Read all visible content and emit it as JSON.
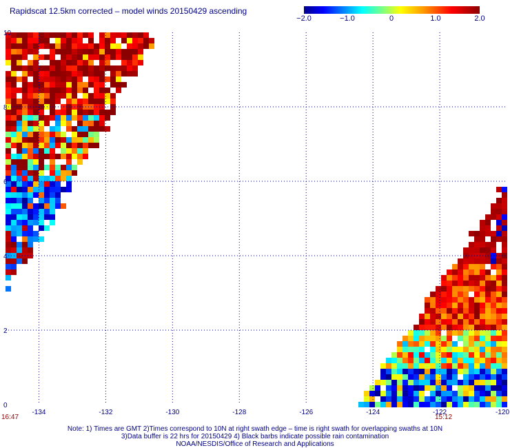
{
  "title": "Rapidscat 12.5km corrected – model winds 20150429 ascending",
  "colorbar": {
    "labels": [
      "−2.0",
      "−1.0",
      "0",
      "1.0",
      "2.0"
    ]
  },
  "times": {
    "left": "16:47",
    "right": "15:12"
  },
  "notes": [
    "Note: 1) Times are GMT 2)Times correspond to 10N at right swath edge – time is right swath for overlapping swaths at 10N",
    "3)Data buffer is 22 hrs for 20150429 4) Black barbs indicate possible rain contamination",
    "NOAA/NESDIS/Office of Research and Applications"
  ],
  "chart_data": {
    "type": "heatmap",
    "x_ticks": [
      "-134",
      "-132",
      "-130",
      "-128",
      "-126",
      "-124",
      "-122",
      "-120"
    ],
    "y_ticks": [
      "0",
      "2",
      "4",
      "6",
      "8",
      "10"
    ],
    "x_range": [
      -135,
      -120
    ],
    "y_range": [
      0,
      10
    ],
    "value_range": [
      -2.0,
      2.0
    ],
    "grid": true,
    "swaths": [
      {
        "name": "left",
        "lon_west": -135,
        "lon_east_at_10N": -130.5,
        "lon_east_at_3N": -135
      },
      {
        "name": "right",
        "lon_west_at_0N": -124.3,
        "lon_west_at_6N": -119.9,
        "lon_east": -119.9
      }
    ]
  }
}
